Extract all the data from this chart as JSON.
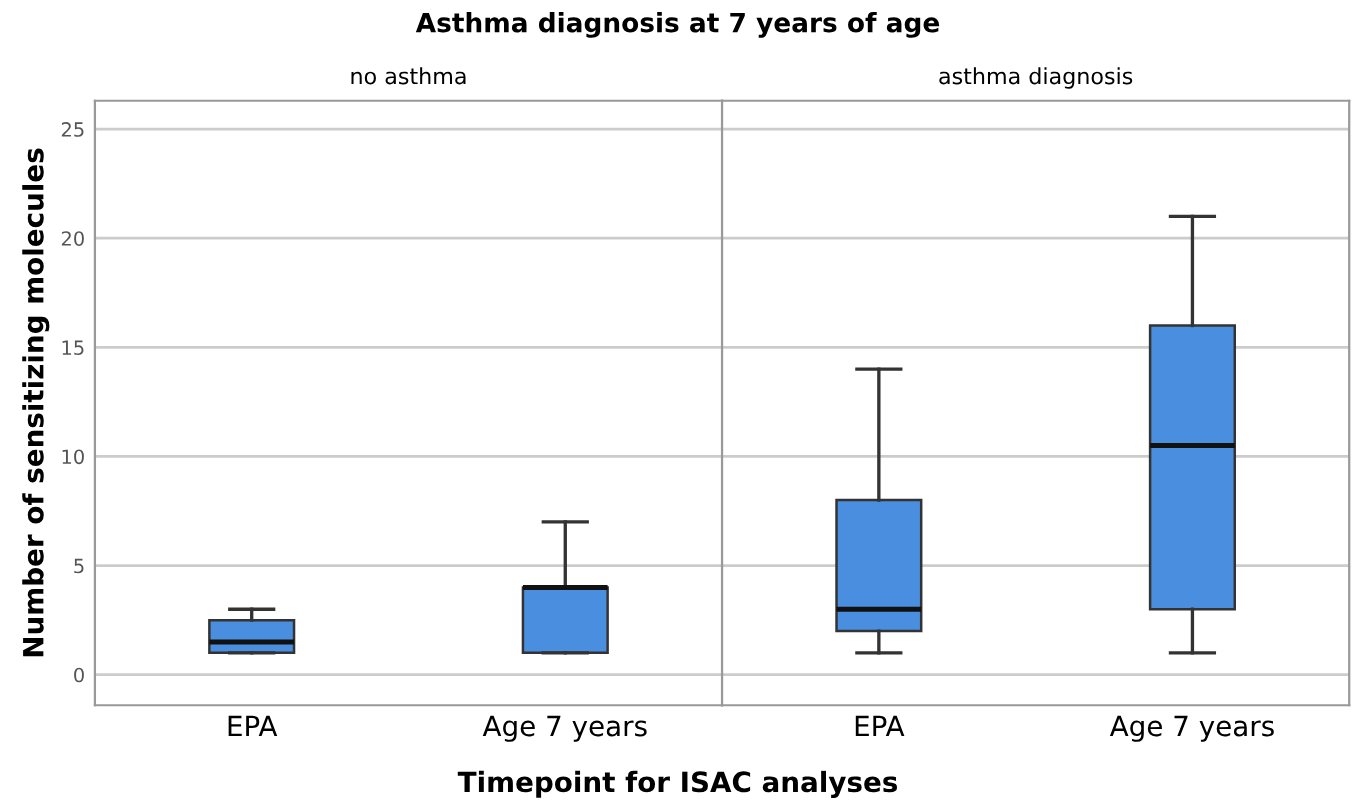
{
  "chart_data": [
    {
      "type": "box",
      "title": "Asthma diagnosis at 7 years of age",
      "subtitle": "no asthma",
      "xlabel": "Timepoint for ISAC analyses",
      "ylabel": "Number of sensitizing molecules",
      "categories": [
        "EPA",
        "Age 7 years"
      ],
      "color": "#4a8fdf",
      "boxes": [
        {
          "low": 1,
          "q1": 1,
          "median": 1.5,
          "q3": 2.5,
          "high": 3
        },
        {
          "low": 1,
          "q1": 1,
          "median": 4,
          "q3": 4,
          "high": 7
        }
      ],
      "ylim": [
        -1.4,
        26.3
      ],
      "yticks": [
        0,
        5,
        10,
        15,
        20,
        25
      ],
      "grid": "y"
    },
    {
      "type": "box",
      "subtitle": "asthma diagnosis",
      "categories": [
        "EPA",
        "Age 7 years"
      ],
      "color": "#4a8fdf",
      "boxes": [
        {
          "low": 1,
          "q1": 2,
          "median": 3,
          "q3": 8,
          "high": 14
        },
        {
          "low": 1,
          "q1": 3,
          "median": 10.5,
          "q3": 16,
          "high": 21
        }
      ],
      "ylim": [
        -1.4,
        26.3
      ],
      "yticks": [
        0,
        5,
        10,
        15,
        20,
        25
      ],
      "grid": "y",
      "tick_labels": "x"
    }
  ]
}
